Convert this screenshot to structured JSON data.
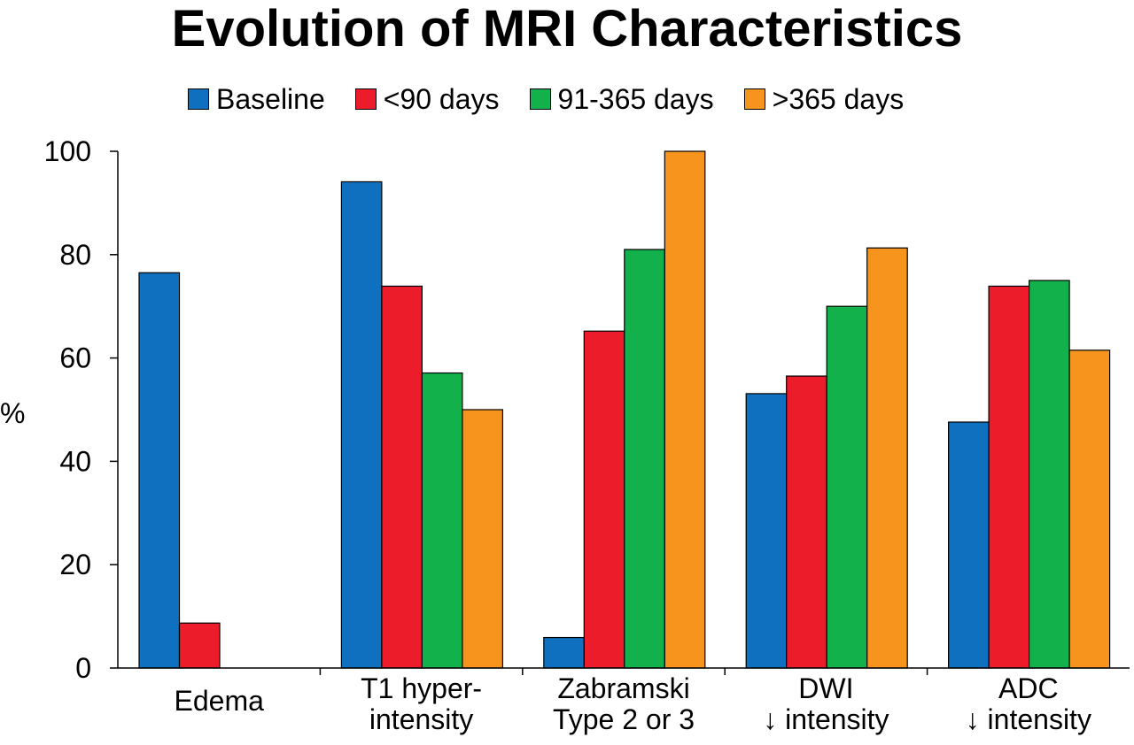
{
  "chart_data": {
    "type": "bar",
    "title": "Evolution of MRI Characteristics",
    "ylabel": "%",
    "xlabel": "",
    "ylim": [
      0,
      100
    ],
    "yticks": [
      0,
      20,
      40,
      60,
      80,
      100
    ],
    "grid": false,
    "legend_position": "top",
    "categories": [
      [
        "Edema"
      ],
      [
        "T1 hyper-",
        "intensity"
      ],
      [
        "Zabramski",
        "Type 2 or 3"
      ],
      [
        "DWI",
        "↓ intensity"
      ],
      [
        "ADC",
        "↓ intensity"
      ]
    ],
    "series": [
      {
        "name": "Baseline",
        "color": "#0f70bf",
        "values": [
          76.5,
          94.1,
          5.9,
          53.1,
          47.6
        ]
      },
      {
        "name": "<90 days",
        "color": "#ec1c2b",
        "values": [
          8.7,
          73.9,
          65.2,
          56.5,
          73.9
        ]
      },
      {
        "name": "91-365 days",
        "color": "#12b14b",
        "values": [
          null,
          57.1,
          81.0,
          70.0,
          75.0
        ]
      },
      {
        "name": ">365 days",
        "color": "#f7941d",
        "values": [
          null,
          50.0,
          100,
          81.3,
          61.5
        ]
      }
    ]
  }
}
